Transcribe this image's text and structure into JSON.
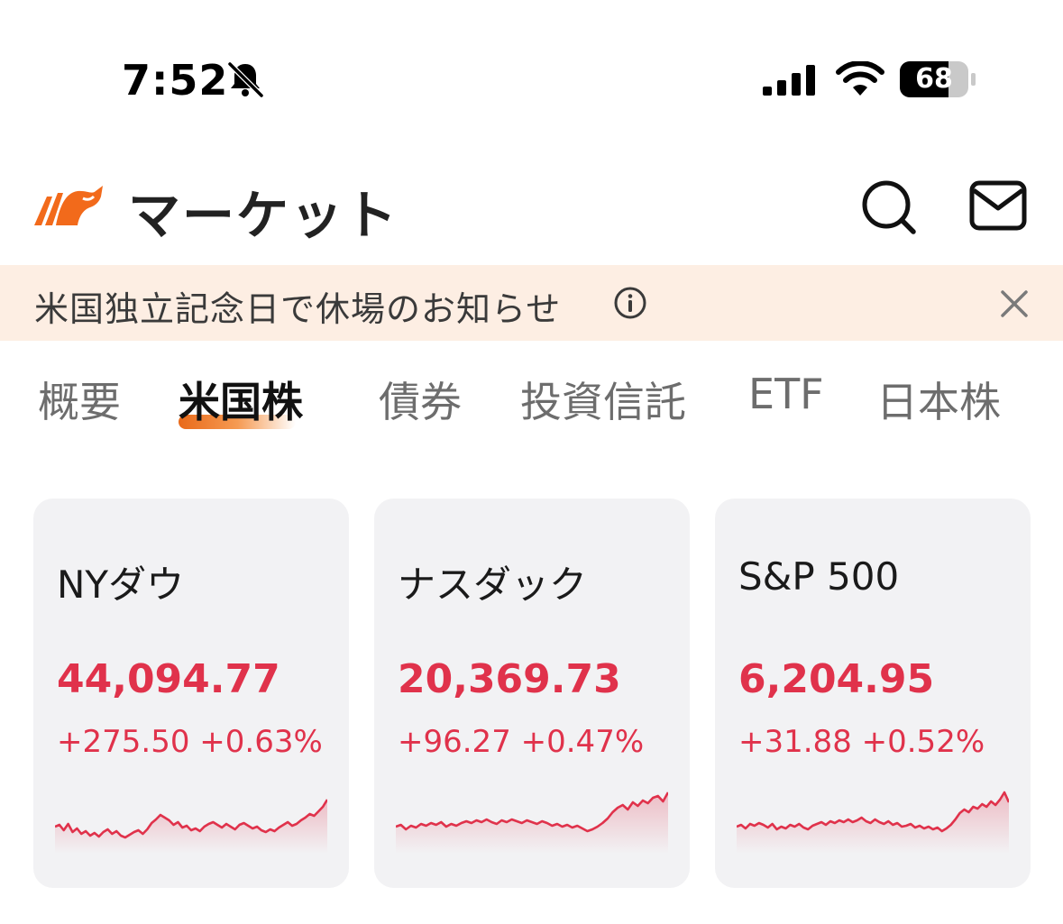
{
  "status_bar": {
    "time": "7:52",
    "battery": "68",
    "icons": [
      "bell-slash-icon",
      "signal-icon",
      "wifi-icon",
      "battery-icon"
    ]
  },
  "header": {
    "title": "マーケット",
    "icons": [
      "bull-logo-icon",
      "search-icon",
      "mail-icon"
    ]
  },
  "banner": {
    "text": "米国独立記念日で休場のお知らせ",
    "icons": [
      "info-icon",
      "close-icon"
    ]
  },
  "tabs": [
    {
      "label": "概要",
      "active": false
    },
    {
      "label": "米国株",
      "active": true
    },
    {
      "label": "債券",
      "active": false
    },
    {
      "label": "投資信託",
      "active": false
    },
    {
      "label": "ETF",
      "active": false
    },
    {
      "label": "日本株",
      "active": false
    }
  ],
  "colors": {
    "accent": "#e96a1a",
    "up": "#e0324b",
    "banner_bg": "#fdeee3",
    "card_bg": "#f2f2f4"
  },
  "cards": [
    {
      "name": "NYダウ",
      "price": "44,094.77",
      "change": "+275.50 +0.63%",
      "spark": [
        52,
        50,
        56,
        49,
        58,
        54,
        60,
        57,
        62,
        59,
        63,
        58,
        55,
        60,
        57,
        62,
        64,
        61,
        58,
        56,
        60,
        55,
        48,
        44,
        39,
        42,
        45,
        50,
        47,
        53,
        51,
        56,
        54,
        57,
        52,
        49,
        47,
        50,
        53,
        49,
        52,
        55,
        50,
        48,
        51,
        54,
        52,
        56,
        58,
        55,
        57,
        53,
        50,
        47,
        51,
        49,
        45,
        42,
        38,
        40,
        35,
        30,
        22
      ]
    },
    {
      "name": "ナスダック",
      "price": "20,369.73",
      "change": "+96.27 +0.47%",
      "spark": [
        52,
        50,
        55,
        51,
        53,
        49,
        51,
        48,
        50,
        47,
        52,
        49,
        51,
        48,
        46,
        48,
        45,
        47,
        44,
        47,
        49,
        45,
        47,
        44,
        46,
        48,
        45,
        47,
        49,
        46,
        48,
        51,
        49,
        52,
        50,
        53,
        51,
        54,
        57,
        55,
        52,
        48,
        43,
        36,
        31,
        28,
        33,
        25,
        29,
        23,
        26,
        20,
        18,
        24,
        14
      ]
    },
    {
      "name": "S&P 500",
      "price": "6,204.95",
      "change": "+31.88 +0.52%",
      "spark": [
        52,
        50,
        54,
        49,
        51,
        48,
        50,
        53,
        49,
        55,
        52,
        54,
        50,
        52,
        49,
        53,
        55,
        51,
        49,
        47,
        50,
        46,
        48,
        45,
        47,
        44,
        47,
        45,
        42,
        46,
        48,
        44,
        47,
        49,
        46,
        50,
        48,
        52,
        51,
        49,
        53,
        51,
        54,
        52,
        55,
        53,
        57,
        54,
        50,
        44,
        37,
        33,
        36,
        30,
        32,
        27,
        30,
        24,
        28,
        22,
        14,
        25
      ]
    }
  ]
}
